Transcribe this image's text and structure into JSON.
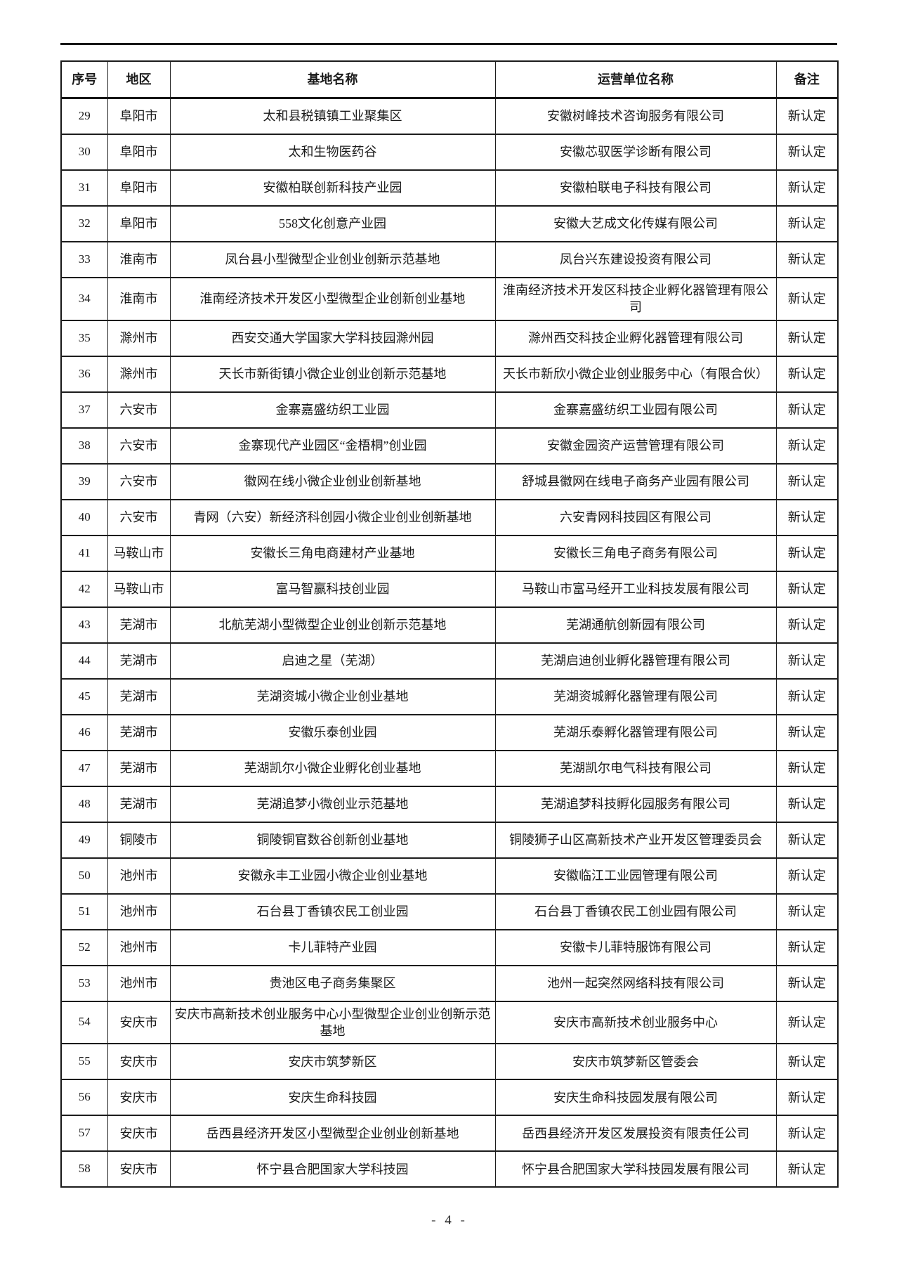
{
  "table": {
    "headers": [
      "序号",
      "地区",
      "基地名称",
      "运营单位名称",
      "备注"
    ],
    "rows": [
      {
        "no": "29",
        "region": "阜阳市",
        "base": "太和县税镇镇工业聚集区",
        "operator": "安徽树峰技术咨询服务有限公司",
        "remark": "新认定"
      },
      {
        "no": "30",
        "region": "阜阳市",
        "base": "太和生物医药谷",
        "operator": "安徽芯驭医学诊断有限公司",
        "remark": "新认定"
      },
      {
        "no": "31",
        "region": "阜阳市",
        "base": "安徽柏联创新科技产业园",
        "operator": "安徽柏联电子科技有限公司",
        "remark": "新认定"
      },
      {
        "no": "32",
        "region": "阜阳市",
        "base": "558文化创意产业园",
        "operator": "安徽大艺成文化传媒有限公司",
        "remark": "新认定"
      },
      {
        "no": "33",
        "region": "淮南市",
        "base": "凤台县小型微型企业创业创新示范基地",
        "operator": "凤台兴东建设投资有限公司",
        "remark": "新认定"
      },
      {
        "no": "34",
        "region": "淮南市",
        "base": "淮南经济技术开发区小型微型企业创新创业基地",
        "operator": "淮南经济技术开发区科技企业孵化器管理有限公司",
        "remark": "新认定"
      },
      {
        "no": "35",
        "region": "滁州市",
        "base": "西安交通大学国家大学科技园滁州园",
        "operator": "滁州西交科技企业孵化器管理有限公司",
        "remark": "新认定"
      },
      {
        "no": "36",
        "region": "滁州市",
        "base": "天长市新街镇小微企业创业创新示范基地",
        "operator": "天长市新欣小微企业创业服务中心（有限合伙）",
        "remark": "新认定"
      },
      {
        "no": "37",
        "region": "六安市",
        "base": "金寨嘉盛纺织工业园",
        "operator": "金寨嘉盛纺织工业园有限公司",
        "remark": "新认定"
      },
      {
        "no": "38",
        "region": "六安市",
        "base": "金寨现代产业园区“金梧桐”创业园",
        "operator": "安徽金园资产运营管理有限公司",
        "remark": "新认定"
      },
      {
        "no": "39",
        "region": "六安市",
        "base": "徽网在线小微企业创业创新基地",
        "operator": "舒城县徽网在线电子商务产业园有限公司",
        "remark": "新认定"
      },
      {
        "no": "40",
        "region": "六安市",
        "base": "青网（六安）新经济科创园小微企业创业创新基地",
        "operator": "六安青网科技园区有限公司",
        "remark": "新认定"
      },
      {
        "no": "41",
        "region": "马鞍山市",
        "base": "安徽长三角电商建材产业基地",
        "operator": "安徽长三角电子商务有限公司",
        "remark": "新认定"
      },
      {
        "no": "42",
        "region": "马鞍山市",
        "base": "富马智赢科技创业园",
        "operator": "马鞍山市富马经开工业科技发展有限公司",
        "remark": "新认定"
      },
      {
        "no": "43",
        "region": "芜湖市",
        "base": "北航芜湖小型微型企业创业创新示范基地",
        "operator": "芜湖通航创新园有限公司",
        "remark": "新认定"
      },
      {
        "no": "44",
        "region": "芜湖市",
        "base": "启迪之星（芜湖）",
        "operator": "芜湖启迪创业孵化器管理有限公司",
        "remark": "新认定"
      },
      {
        "no": "45",
        "region": "芜湖市",
        "base": "芜湖资城小微企业创业基地",
        "operator": "芜湖资城孵化器管理有限公司",
        "remark": "新认定"
      },
      {
        "no": "46",
        "region": "芜湖市",
        "base": "安徽乐泰创业园",
        "operator": "芜湖乐泰孵化器管理有限公司",
        "remark": "新认定"
      },
      {
        "no": "47",
        "region": "芜湖市",
        "base": "芜湖凯尔小微企业孵化创业基地",
        "operator": "芜湖凯尔电气科技有限公司",
        "remark": "新认定"
      },
      {
        "no": "48",
        "region": "芜湖市",
        "base": "芜湖追梦小微创业示范基地",
        "operator": "芜湖追梦科技孵化园服务有限公司",
        "remark": "新认定"
      },
      {
        "no": "49",
        "region": "铜陵市",
        "base": "铜陵铜官数谷创新创业基地",
        "operator": "铜陵狮子山区高新技术产业开发区管理委员会",
        "remark": "新认定"
      },
      {
        "no": "50",
        "region": "池州市",
        "base": "安徽永丰工业园小微企业创业基地",
        "operator": "安徽临江工业园管理有限公司",
        "remark": "新认定"
      },
      {
        "no": "51",
        "region": "池州市",
        "base": "石台县丁香镇农民工创业园",
        "operator": "石台县丁香镇农民工创业园有限公司",
        "remark": "新认定"
      },
      {
        "no": "52",
        "region": "池州市",
        "base": "卡儿菲特产业园",
        "operator": "安徽卡儿菲特服饰有限公司",
        "remark": "新认定"
      },
      {
        "no": "53",
        "region": "池州市",
        "base": "贵池区电子商务集聚区",
        "operator": "池州一起突然网络科技有限公司",
        "remark": "新认定"
      },
      {
        "no": "54",
        "region": "安庆市",
        "base": "安庆市高新技术创业服务中心小型微型企业创业创新示范基地",
        "operator": "安庆市高新技术创业服务中心",
        "remark": "新认定"
      },
      {
        "no": "55",
        "region": "安庆市",
        "base": "安庆市筑梦新区",
        "operator": "安庆市筑梦新区管委会",
        "remark": "新认定"
      },
      {
        "no": "56",
        "region": "安庆市",
        "base": "安庆生命科技园",
        "operator": "安庆生命科技园发展有限公司",
        "remark": "新认定"
      },
      {
        "no": "57",
        "region": "安庆市",
        "base": "岳西县经济开发区小型微型企业创业创新基地",
        "operator": "岳西县经济开发区发展投资有限责任公司",
        "remark": "新认定"
      },
      {
        "no": "58",
        "region": "安庆市",
        "base": "怀宁县合肥国家大学科技园",
        "operator": "怀宁县合肥国家大学科技园发展有限公司",
        "remark": "新认定"
      }
    ]
  },
  "footer": {
    "page_number": "- 4 -"
  }
}
